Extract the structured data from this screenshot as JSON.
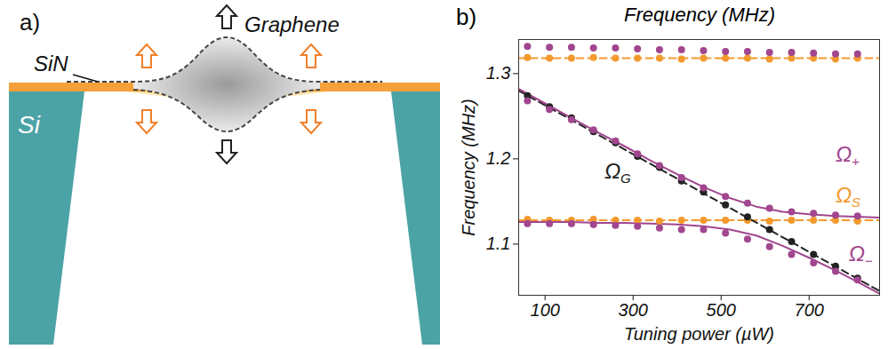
{
  "diagram": {
    "panel_label": "a)",
    "labels": {
      "sin": "SiN",
      "graphene": "Graphene",
      "si": "Si"
    }
  },
  "chart_data": {
    "type": "scatter",
    "panel_label": "b)",
    "title": "Frequency (MHz)",
    "x_label": "Tuning power (µW)",
    "y_label": "Frequency (MHz)",
    "xlim": [
      40,
      860
    ],
    "xticks": [
      100,
      300,
      500,
      700
    ],
    "ylim": [
      1.04,
      1.34
    ],
    "yticks": [
      1.1,
      1.2,
      1.3
    ],
    "grid": false,
    "series": [
      {
        "type": "line",
        "color": "#f39a2e",
        "line_style": "dashed",
        "x": [
          40,
          860
        ],
        "values": [
          1.318,
          1.318
        ]
      },
      {
        "type": "line",
        "color": "#f39a2e",
        "line_style": "dashed",
        "x": [
          40,
          860
        ],
        "values": [
          1.128,
          1.128
        ]
      },
      {
        "type": "line",
        "color": "#222222",
        "line_style": "dashed",
        "x": [
          40,
          860
        ],
        "values": [
          1.28,
          1.045
        ]
      },
      {
        "type": "line",
        "color": "#a1468f",
        "line_style": "solid",
        "x": [
          40,
          100,
          160,
          220,
          280,
          340,
          400,
          460,
          520,
          580,
          640,
          700,
          760,
          820,
          860
        ],
        "values": [
          1.282,
          1.265,
          1.248,
          1.231,
          1.215,
          1.198,
          1.182,
          1.167,
          1.154,
          1.144,
          1.138,
          1.135,
          1.133,
          1.132,
          1.131
        ]
      },
      {
        "type": "line",
        "color": "#a1468f",
        "line_style": "solid",
        "x": [
          40,
          100,
          160,
          220,
          280,
          340,
          400,
          460,
          520,
          580,
          640,
          700,
          760,
          820,
          860
        ],
        "values": [
          1.126,
          1.126,
          1.126,
          1.125,
          1.125,
          1.124,
          1.123,
          1.121,
          1.117,
          1.11,
          1.098,
          1.084,
          1.069,
          1.053,
          1.042
        ]
      },
      {
        "type": "scatter",
        "color": "#f39a2e",
        "marker": "circle",
        "x": [
          60,
          110,
          160,
          210,
          260,
          310,
          360,
          410,
          460,
          510,
          560,
          610,
          660,
          710,
          760,
          810
        ],
        "values": [
          1.319,
          1.318,
          1.318,
          1.319,
          1.318,
          1.318,
          1.318,
          1.317,
          1.318,
          1.318,
          1.318,
          1.317,
          1.318,
          1.318,
          1.317,
          1.318
        ]
      },
      {
        "type": "scatter",
        "color": "#f39a2e",
        "marker": "circle",
        "x": [
          60,
          110,
          160,
          210,
          260,
          310,
          360,
          410,
          460,
          510,
          560,
          610,
          660,
          710,
          760,
          810
        ],
        "values": [
          1.129,
          1.128,
          1.128,
          1.129,
          1.128,
          1.128,
          1.127,
          1.128,
          1.128,
          1.128,
          1.128,
          1.127,
          1.128,
          1.128,
          1.128,
          1.127
        ]
      },
      {
        "type": "scatter",
        "color": "#222222",
        "marker": "circle",
        "x": [
          60,
          110,
          160,
          210,
          260,
          310,
          360,
          410,
          460,
          510,
          560,
          610,
          660,
          710,
          760,
          810
        ],
        "values": [
          1.274,
          1.261,
          1.248,
          1.232,
          1.219,
          1.203,
          1.19,
          1.174,
          1.161,
          1.146,
          1.132,
          1.117,
          1.103,
          1.088,
          1.074,
          1.06
        ]
      },
      {
        "type": "scatter",
        "color": "#a1468f",
        "marker": "circle",
        "x": [
          60,
          110,
          160,
          210,
          260,
          310,
          360,
          410,
          460,
          510,
          560,
          610,
          660,
          710,
          760,
          810
        ],
        "values": [
          1.332,
          1.331,
          1.331,
          1.33,
          1.33,
          1.329,
          1.328,
          1.328,
          1.327,
          1.326,
          1.326,
          1.325,
          1.325,
          1.324,
          1.323,
          1.323
        ]
      },
      {
        "type": "scatter",
        "color": "#a1468f",
        "marker": "circle",
        "x": [
          60,
          110,
          160,
          210,
          260,
          310,
          360,
          410,
          460,
          510,
          560,
          610,
          660,
          710,
          760,
          810
        ],
        "values": [
          1.268,
          1.258,
          1.246,
          1.234,
          1.221,
          1.206,
          1.192,
          1.178,
          1.166,
          1.156,
          1.148,
          1.142,
          1.138,
          1.136,
          1.134,
          1.133
        ]
      },
      {
        "type": "scatter",
        "color": "#a1468f",
        "marker": "circle",
        "x": [
          60,
          110,
          160,
          210,
          260,
          310,
          360,
          410,
          460,
          510,
          560,
          610,
          660,
          710,
          760,
          810
        ],
        "values": [
          1.124,
          1.124,
          1.124,
          1.123,
          1.122,
          1.121,
          1.119,
          1.117,
          1.117,
          1.113,
          1.106,
          1.097,
          1.088,
          1.078,
          1.068,
          1.058
        ]
      }
    ],
    "annotations": [
      {
        "text": "Ω",
        "subscript": "G",
        "x": 235,
        "y": 1.185,
        "color": "#222222"
      },
      {
        "text": "Ω",
        "subscript": "+",
        "x": 760,
        "y": 1.205,
        "color": "#a1468f"
      },
      {
        "text": "Ω",
        "subscript": "S",
        "x": 760,
        "y": 1.157,
        "color": "#f39a2e"
      },
      {
        "text": "Ω",
        "subscript": "−",
        "x": 790,
        "y": 1.088,
        "color": "#a1468f"
      }
    ]
  }
}
